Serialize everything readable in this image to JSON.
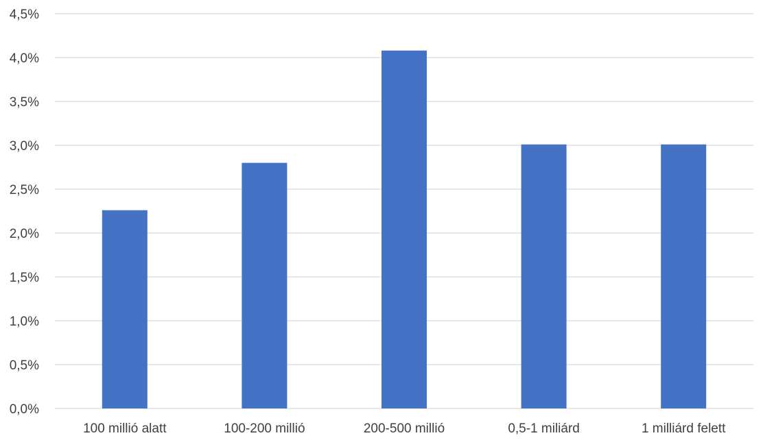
{
  "chart_data": {
    "type": "bar",
    "categories": [
      "100 millió alatt",
      "100-200 millió",
      "200-500 millió",
      "0,5-1 miliárd",
      "1 milliárd felett"
    ],
    "values": [
      2.26,
      2.8,
      4.08,
      3.01,
      3.01
    ],
    "ylim": [
      0,
      4.5
    ],
    "yticks": [
      "0,0%",
      "0,5%",
      "1,0%",
      "1,5%",
      "2,0%",
      "2,5%",
      "3,0%",
      "3,5%",
      "4,0%",
      "4,5%"
    ],
    "title": "",
    "xlabel": "",
    "ylabel": "",
    "grid": true,
    "bar_color": "#4472C4",
    "grid_color": "#D9D9D9"
  }
}
